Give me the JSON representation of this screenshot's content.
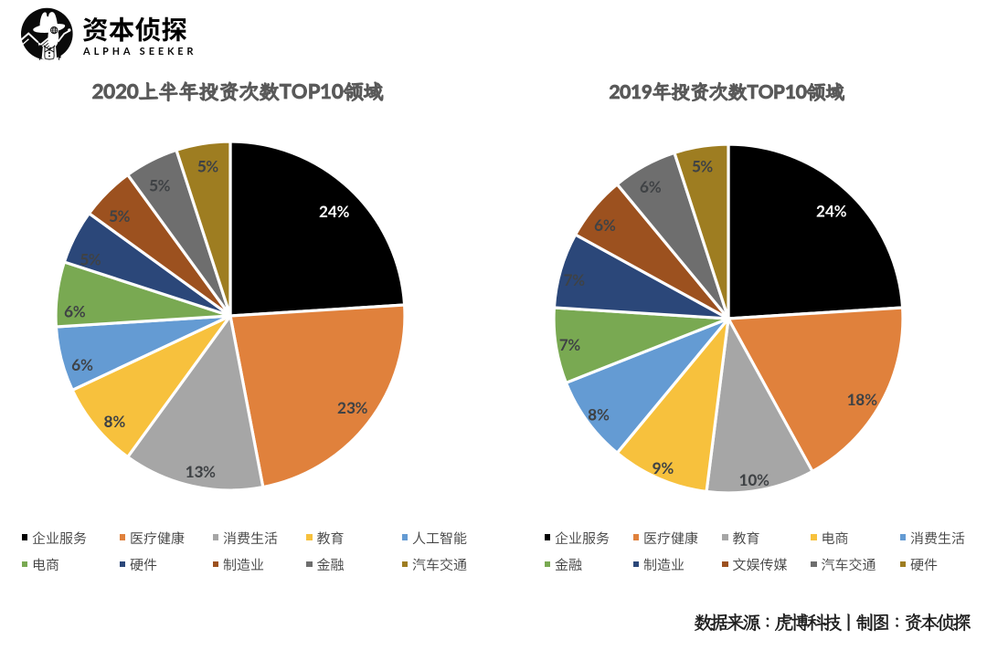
{
  "logo": {
    "title": "资本侦探",
    "subtitle": "ALPHA SEEKER",
    "icon": "detective-icon"
  },
  "footer": {
    "credit": "数据来源：虎博科技丨制图：资本侦探"
  },
  "colors": {
    "slice_palette": [
      "#000000",
      "#E0813C",
      "#A6A6A6",
      "#F7C13D",
      "#649BD3",
      "#79A952",
      "#2B4779",
      "#9C511F",
      "#6E6E6E",
      "#9E7D21"
    ],
    "label_default": "#3F4245",
    "label_on_black": "#FFFFFF",
    "title_text": "#595959",
    "legend_text": "#3F3F3F",
    "footer_text": "#1F1F1F"
  },
  "chart_data": [
    {
      "type": "pie",
      "title": "2020上半年投资次数TOP10领域",
      "legend_position": "bottom",
      "start_angle_deg": 0,
      "direction": "clockwise",
      "series": [
        {
          "label": "企业服务",
          "value": 24,
          "display": "24%",
          "color": "#000000",
          "label_color": "#FFFFFF"
        },
        {
          "label": "医疗健康",
          "value": 23,
          "display": "23%",
          "color": "#E0813C",
          "label_color": "#3F4245"
        },
        {
          "label": "消费生活",
          "value": 13,
          "display": "13%",
          "color": "#A6A6A6",
          "label_color": "#3F4245"
        },
        {
          "label": "教育",
          "value": 8,
          "display": "8%",
          "color": "#F7C13D",
          "label_color": "#3F4245"
        },
        {
          "label": "人工智能",
          "value": 6,
          "display": "6%",
          "color": "#649BD3",
          "label_color": "#3F4245"
        },
        {
          "label": "电商",
          "value": 6,
          "display": "6%",
          "color": "#79A952",
          "label_color": "#3F4245"
        },
        {
          "label": "硬件",
          "value": 5,
          "display": "5%",
          "color": "#2B4779",
          "label_color": "#3F4245"
        },
        {
          "label": "制造业",
          "value": 5,
          "display": "5%",
          "color": "#9C511F",
          "label_color": "#3F4245"
        },
        {
          "label": "金融",
          "value": 5,
          "display": "5%",
          "color": "#6E6E6E",
          "label_color": "#3F4245"
        },
        {
          "label": "汽车交通",
          "value": 5,
          "display": "5%",
          "color": "#9E7D21",
          "label_color": "#3F4245"
        }
      ]
    },
    {
      "type": "pie",
      "title": "2019年投资次数TOP10领域",
      "legend_position": "bottom",
      "start_angle_deg": 0,
      "direction": "clockwise",
      "series": [
        {
          "label": "企业服务",
          "value": 24,
          "display": "24%",
          "color": "#000000",
          "label_color": "#FFFFFF"
        },
        {
          "label": "医疗健康",
          "value": 18,
          "display": "18%",
          "color": "#E0813C",
          "label_color": "#3F4245"
        },
        {
          "label": "教育",
          "value": 10,
          "display": "10%",
          "color": "#A6A6A6",
          "label_color": "#3F4245"
        },
        {
          "label": "电商",
          "value": 9,
          "display": "9%",
          "color": "#F7C13D",
          "label_color": "#3F4245"
        },
        {
          "label": "消费生活",
          "value": 8,
          "display": "8%",
          "color": "#649BD3",
          "label_color": "#3F4245"
        },
        {
          "label": "金融",
          "value": 7,
          "display": "7%",
          "color": "#79A952",
          "label_color": "#3F4245"
        },
        {
          "label": "制造业",
          "value": 7,
          "display": "7%",
          "color": "#2B4779",
          "label_color": "#3F4245"
        },
        {
          "label": "文娱传媒",
          "value": 6,
          "display": "6%",
          "color": "#9C511F",
          "label_color": "#3F4245"
        },
        {
          "label": "汽车交通",
          "value": 6,
          "display": "6%",
          "color": "#6E6E6E",
          "label_color": "#3F4245"
        },
        {
          "label": "硬件",
          "value": 5,
          "display": "5%",
          "color": "#9E7D21",
          "label_color": "#3F4245"
        }
      ]
    }
  ]
}
